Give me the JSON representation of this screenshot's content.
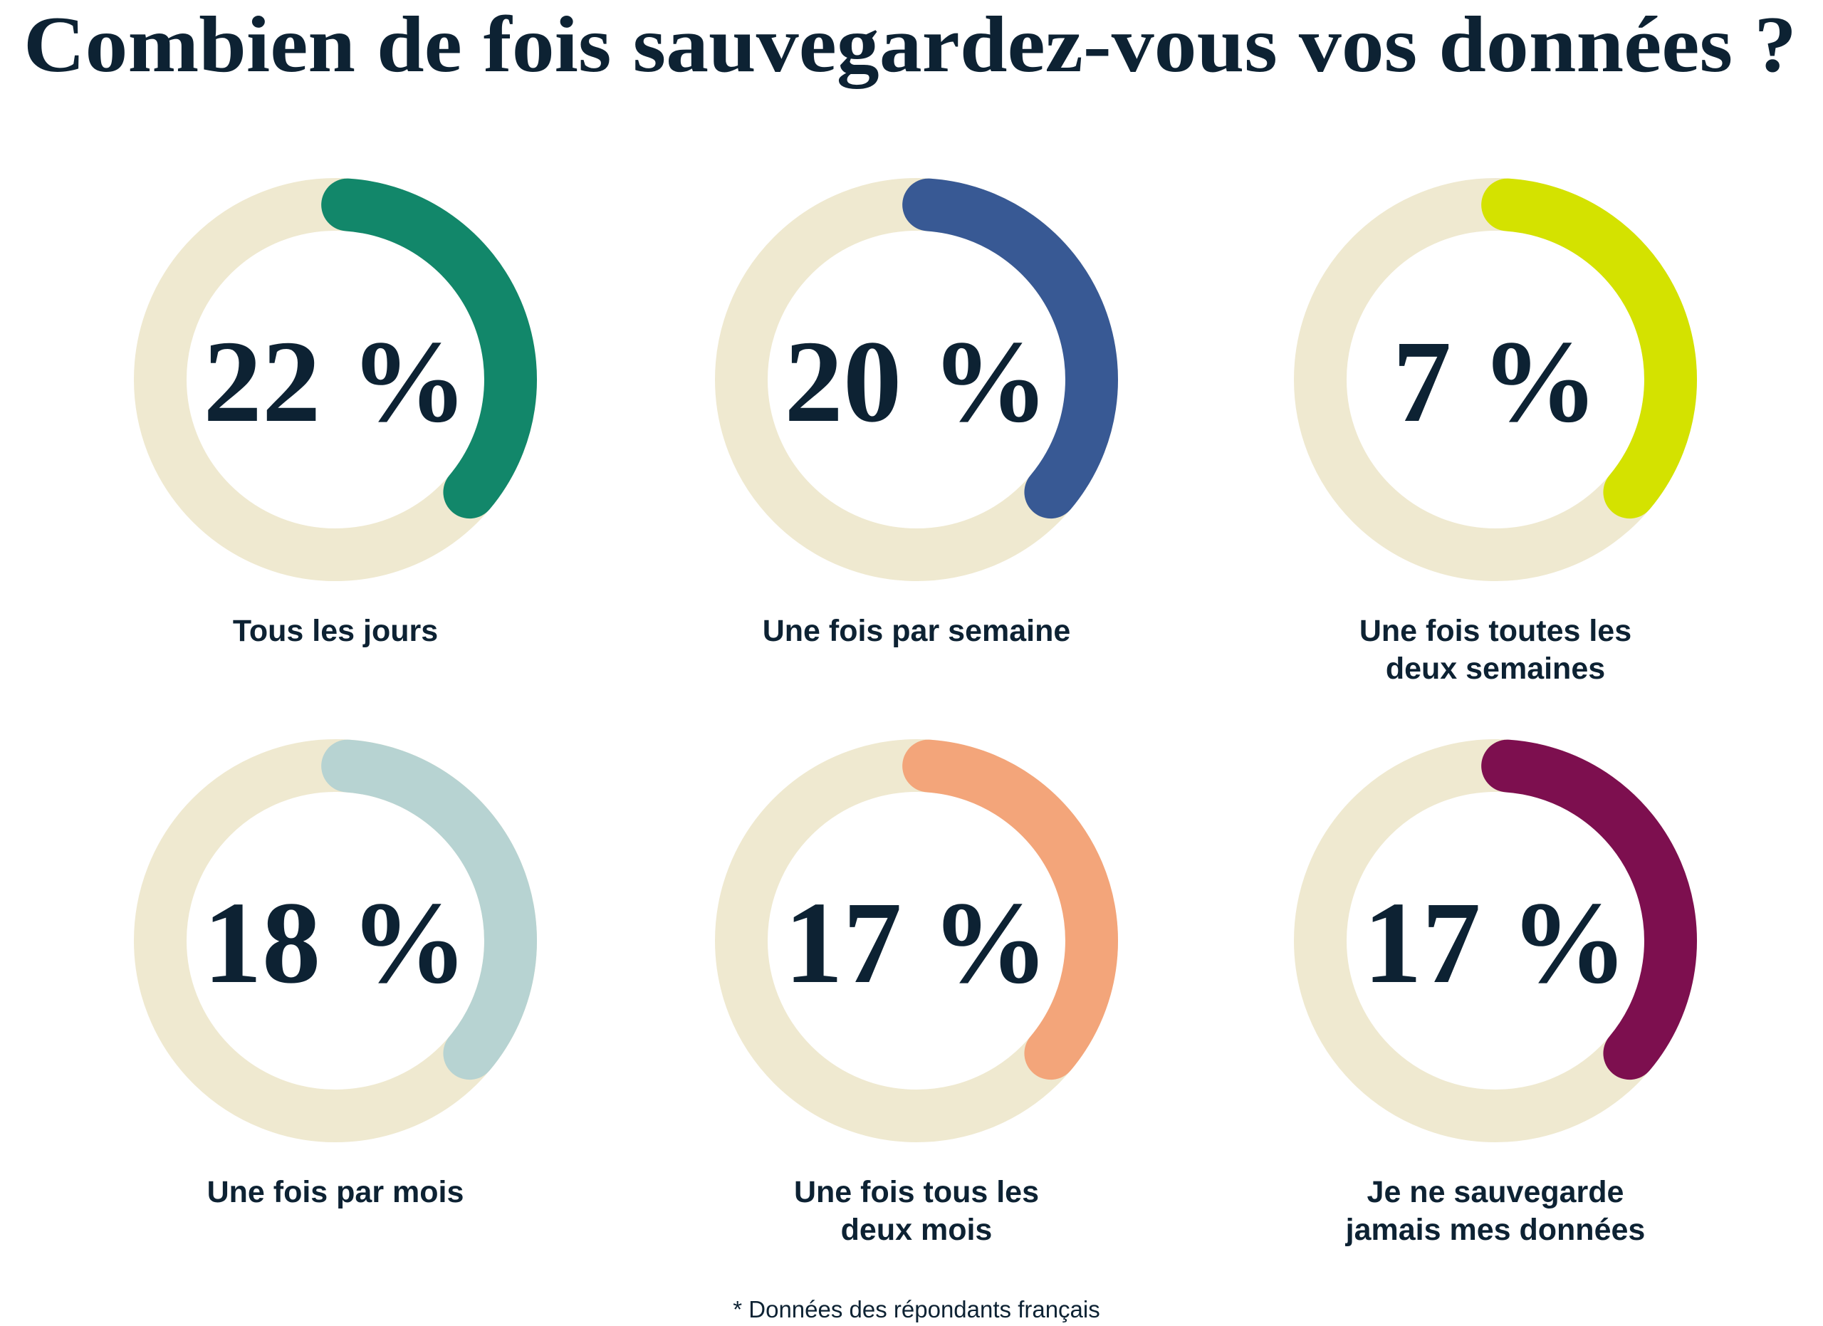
{
  "chart_data": {
    "type": "donut",
    "title": "Combien de fois sauvegardez-vous vos données ?",
    "categories": [
      [
        "Tous les jours"
      ],
      [
        "Une fois par semaine"
      ],
      [
        "Une fois toutes les",
        "deux semaines"
      ],
      [
        "Une fois par mois"
      ],
      [
        "Une fois tous les",
        "deux mois"
      ],
      [
        "Je ne sauvegarde",
        "jamais mes données"
      ]
    ],
    "values": [
      22,
      20,
      7,
      18,
      17,
      17
    ],
    "value_labels": [
      "22 %",
      "20 %",
      "7 %",
      "18 %",
      "17 %",
      "17 %"
    ],
    "colors": [
      "#12876a",
      "#385994",
      "#d4e200",
      "#b7d3d2",
      "#f3a57a",
      "#7d0f4f"
    ],
    "footnote": "* Données des répondants français"
  }
}
